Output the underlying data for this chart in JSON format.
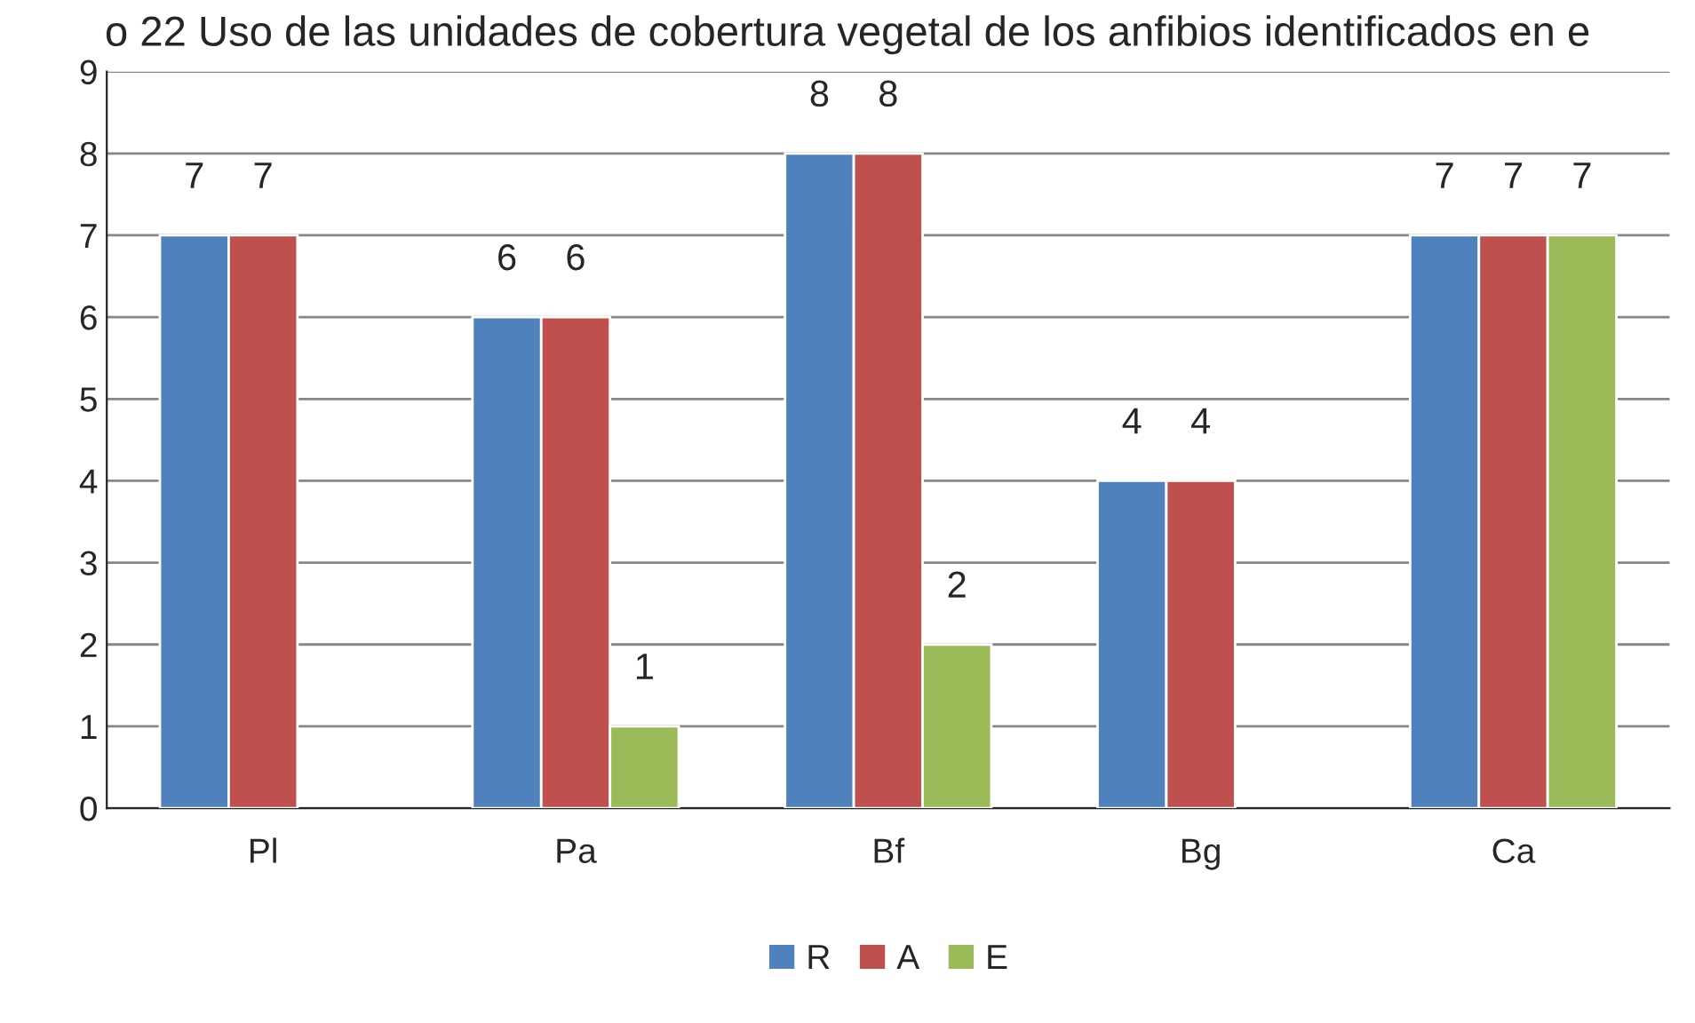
{
  "chart_data": {
    "type": "bar",
    "title": "o 22 Uso de las unidades de cobertura vegetal de los anfibios identificados en e",
    "categories": [
      "Pl",
      "Pa",
      "Bf",
      "Bg",
      "Ca"
    ],
    "series": [
      {
        "name": "R",
        "color": "#4f81bd",
        "values": [
          7,
          6,
          8,
          4,
          7
        ]
      },
      {
        "name": "A",
        "color": "#c0504d",
        "values": [
          7,
          6,
          8,
          4,
          7
        ]
      },
      {
        "name": "E",
        "color": "#9bbb59",
        "values": [
          null,
          1,
          2,
          null,
          7
        ]
      }
    ],
    "ylim": [
      0,
      9
    ],
    "yticks": [
      0,
      1,
      2,
      3,
      4,
      5,
      6,
      7,
      8,
      9
    ],
    "grid": "y",
    "legend": "bottom",
    "data_labels": true
  }
}
